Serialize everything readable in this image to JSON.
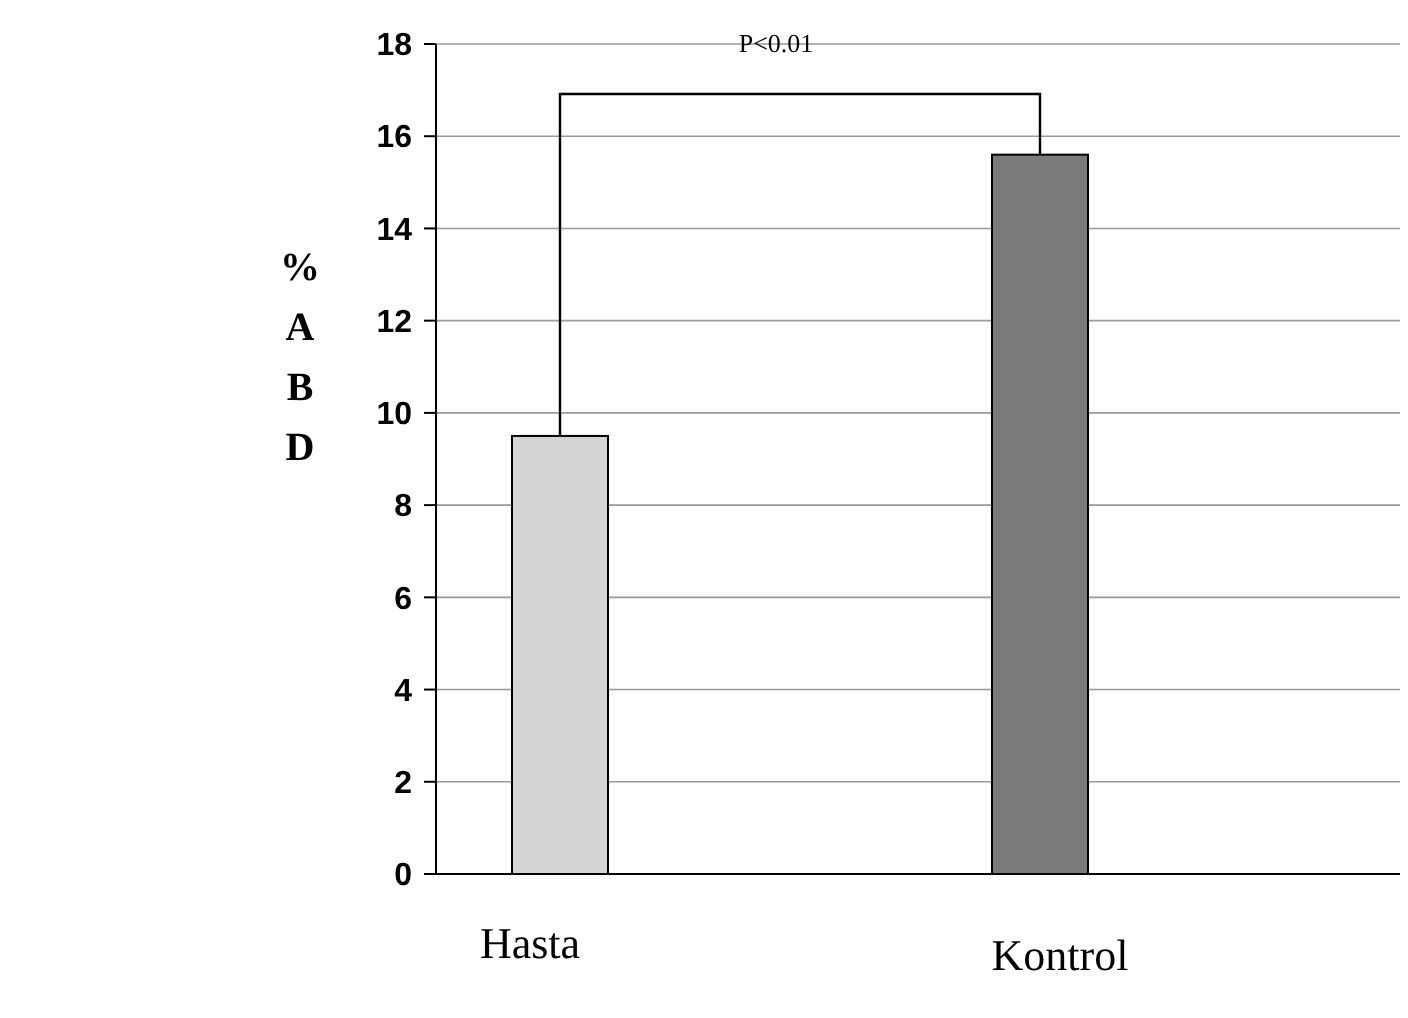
{
  "chart_data": {
    "type": "bar",
    "ylabel": "%ABD",
    "categories": [
      "Hasta",
      "Kontrol"
    ],
    "values": [
      9.5,
      15.6
    ],
    "colors": [
      "#d4d4d4",
      "#7a7a7a"
    ],
    "ylim": [
      0,
      18
    ],
    "yticks": [
      0,
      2,
      4,
      6,
      8,
      10,
      12,
      14,
      16,
      18
    ],
    "grid": "y",
    "annotations": [
      "P<0.01"
    ]
  }
}
